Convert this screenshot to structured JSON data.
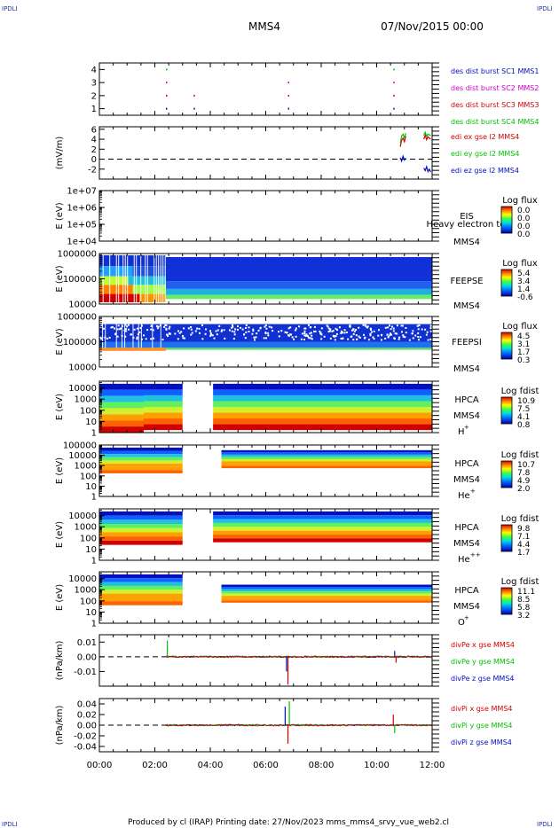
{
  "header": {
    "title": "MMS4",
    "datetime": "07/Nov/2015 00:00",
    "corner_label": "IPDLI",
    "footer": "Produced by cl (IRAP)   Printing date: 27/Nov/2023   mms_mms4_srvy_vue_web2.cl"
  },
  "x_ticks": [
    "00:00",
    "02:00",
    "04:00",
    "06:00",
    "08:00",
    "10:00",
    "12:00"
  ],
  "colors": {
    "red": "#d40000",
    "green": "#00c000",
    "blue": "#0010c0",
    "magenta": "#d000d0"
  },
  "chart_data": [
    {
      "type": "scatter",
      "panel": "burst",
      "ylabel": "",
      "yticks": [
        "1",
        "2",
        "3",
        "4"
      ],
      "ylim": [
        0.5,
        4.5
      ],
      "legend": [
        {
          "label": "des dist burst SC1 MMS1",
          "color": "#0010c0"
        },
        {
          "label": "des dist burst SC2 MMS2",
          "color": "#d000d0"
        },
        {
          "label": "des dist burst SC3 MMS3",
          "color": "#d40000"
        },
        {
          "label": "des dist burst SC4 MMS4",
          "color": "#00c000"
        }
      ],
      "x_hours": [
        2.4,
        3.4,
        6.8,
        10.6
      ],
      "series": [
        {
          "level": 4,
          "color": "#00c000",
          "x_hours": [
            2.4,
            10.6
          ]
        },
        {
          "level": 3,
          "color": "#d000d0",
          "x_hours": [
            2.4,
            6.8,
            10.6
          ]
        },
        {
          "level": 2,
          "color": "#d40000",
          "x_hours": [
            2.4,
            3.4,
            6.8,
            10.6
          ]
        },
        {
          "level": 1,
          "color": "#0010c0",
          "x_hours": [
            2.4,
            3.4,
            6.8,
            10.6
          ]
        }
      ]
    },
    {
      "type": "line",
      "panel": "edi",
      "ylabel": "(mV/m)",
      "yticks": [
        "-2",
        "0",
        "2",
        "4",
        "6"
      ],
      "ylim": [
        -4,
        6.5
      ],
      "legend": [
        {
          "label": "edi ex gse l2 MMS4",
          "color": "#d40000"
        },
        {
          "label": "edi ey gse l2 MMS4",
          "color": "#00c000"
        },
        {
          "label": "edi ez gse l2 MMS4",
          "color": "#0010c0"
        }
      ],
      "series": [
        {
          "name": "edi ex gse l2 MMS4",
          "color": "#d40000",
          "x": [
            10.85,
            10.9,
            10.95,
            11.0,
            11.05,
            11.7,
            11.75,
            11.8,
            11.85,
            11.9,
            11.95
          ],
          "y": [
            2.5,
            3.8,
            4.2,
            3.5,
            4.6,
            4.0,
            4.8,
            3.9,
            4.5,
            4.2,
            4.0
          ]
        },
        {
          "name": "edi ey gse l2 MMS4",
          "color": "#00c000",
          "x": [
            10.85,
            10.9,
            10.95,
            11.0,
            11.05,
            11.7,
            11.75,
            11.8,
            11.85,
            11.9,
            11.95
          ],
          "y": [
            3.2,
            4.6,
            5.0,
            4.3,
            5.2,
            4.8,
            5.4,
            4.6,
            5.0,
            4.9,
            4.7
          ]
        },
        {
          "name": "edi ez gse l2 MMS4",
          "color": "#0010c0",
          "x": [
            10.85,
            10.9,
            10.95,
            11.0,
            11.05,
            11.7,
            11.75,
            11.8,
            11.85,
            11.9,
            11.95
          ],
          "y": [
            0.3,
            -0.4,
            0.6,
            -0.2,
            0.2,
            -1.8,
            -2.3,
            -1.5,
            -2.5,
            -2.0,
            -2.6
          ]
        }
      ]
    },
    {
      "type": "heatmap",
      "panel": "eis",
      "ylabel": "E (eV)",
      "yticks": [
        "1e+04",
        "1e+05",
        "1e+06",
        "1e+07"
      ],
      "log_y": true,
      "ylim": [
        10000,
        10000000
      ],
      "species": [
        "EIS",
        "Heavy electron to",
        "MMS4"
      ],
      "colorbar": {
        "title": "Log flux",
        "ticks": [
          "0.0",
          "0.0",
          "0.0",
          "0.0"
        ]
      }
    },
    {
      "type": "heatmap",
      "panel": "feepse",
      "ylabel": "E (eV)",
      "yticks": [
        "10000",
        "100000",
        "1000000"
      ],
      "log_y": true,
      "ylim": [
        10000,
        1000000
      ],
      "species": [
        "FEEPSE",
        "MMS4"
      ],
      "colorbar": {
        "title": "Log flux",
        "ticks": [
          "5.4",
          "3.4",
          "1.4",
          "-0.6"
        ]
      }
    },
    {
      "type": "heatmap",
      "panel": "feepsi",
      "ylabel": "E (eV)",
      "yticks": [
        "10000",
        "100000",
        "1000000"
      ],
      "log_y": true,
      "ylim": [
        10000,
        1000000
      ],
      "species": [
        "FEEPSI",
        "MMS4"
      ],
      "colorbar": {
        "title": "Log flux",
        "ticks": [
          "4.5",
          "3.1",
          "1.7",
          "0.3"
        ]
      }
    },
    {
      "type": "heatmap",
      "panel": "hpca_h",
      "ylabel": "E (eV)",
      "yticks": [
        "1",
        "10",
        "100",
        "1000",
        "10000"
      ],
      "log_y": true,
      "ylim": [
        1,
        40000
      ],
      "species": [
        "HPCA",
        "MMS4"
      ],
      "ion": "H",
      "charge": "+",
      "colorbar": {
        "title": "Log fdist",
        "ticks": [
          "10.9",
          "7.5",
          "4.1",
          "0.8"
        ]
      }
    },
    {
      "type": "heatmap",
      "panel": "hpca_he",
      "ylabel": "E (eV)",
      "yticks": [
        "1",
        "10",
        "100",
        "1000",
        "10000",
        "100000"
      ],
      "log_y": true,
      "ylim": [
        1,
        100000
      ],
      "species": [
        "HPCA",
        "MMS4"
      ],
      "ion": "He",
      "charge": "+",
      "colorbar": {
        "title": "Log fdist",
        "ticks": [
          "10.7",
          "7.8",
          "4.9",
          "2.0"
        ]
      }
    },
    {
      "type": "heatmap",
      "panel": "hpca_hepp",
      "ylabel": "E (eV)",
      "yticks": [
        "1",
        "10",
        "100",
        "1000",
        "10000"
      ],
      "log_y": true,
      "ylim": [
        1,
        40000
      ],
      "species": [
        "HPCA",
        "MMS4"
      ],
      "ion": "He",
      "charge": "++",
      "colorbar": {
        "title": "Log fdist",
        "ticks": [
          "9.8",
          "7.1",
          "4.4",
          "1.7"
        ]
      }
    },
    {
      "type": "heatmap",
      "panel": "hpca_o",
      "ylabel": "E (eV)",
      "yticks": [
        "1",
        "10",
        "100",
        "1000",
        "10000"
      ],
      "log_y": true,
      "ylim": [
        1,
        40000
      ],
      "species": [
        "HPCA",
        "MMS4"
      ],
      "ion": "O",
      "charge": "+",
      "colorbar": {
        "title": "Log fdist",
        "ticks": [
          "11.1",
          "8.5",
          "5.8",
          "3.2"
        ]
      }
    },
    {
      "type": "line",
      "panel": "divpe",
      "ylabel": "(nPa/km)",
      "yticks": [
        "-0.01",
        "0.00",
        "0.01"
      ],
      "ylim": [
        -0.02,
        0.015
      ],
      "legend": [
        {
          "label": "divPe x gse MMS4",
          "color": "#d40000"
        },
        {
          "label": "divPe y gse MMS4",
          "color": "#00c000"
        },
        {
          "label": "divPe z gse MMS4",
          "color": "#0010c0"
        }
      ],
      "data_start_hour": 2.4,
      "spikes": [
        {
          "x": 6.8,
          "y": -0.019,
          "color": "#d40000"
        },
        {
          "x": 6.75,
          "y": -0.01,
          "color": "#0010c0"
        },
        {
          "x": 10.65,
          "y": 0.004,
          "color": "#0010c0"
        },
        {
          "x": 10.7,
          "y": -0.004,
          "color": "#d40000"
        },
        {
          "x": 2.45,
          "y": 0.011,
          "color": "#00c000"
        }
      ]
    },
    {
      "type": "line",
      "panel": "divpi",
      "ylabel": "(nPa/km)",
      "yticks": [
        "-0.04",
        "-0.02",
        "0.00",
        "0.02",
        "0.04"
      ],
      "ylim": [
        -0.05,
        0.05
      ],
      "legend": [
        {
          "label": "divPi x gse MMS4",
          "color": "#d40000"
        },
        {
          "label": "divPi y gse MMS4",
          "color": "#00c000"
        },
        {
          "label": "divPi z gse MMS4",
          "color": "#0010c0"
        }
      ],
      "data_start_hour": 2.4,
      "spikes": [
        {
          "x": 6.85,
          "y": 0.045,
          "color": "#00c000"
        },
        {
          "x": 6.8,
          "y": -0.035,
          "color": "#d40000"
        },
        {
          "x": 6.7,
          "y": 0.035,
          "color": "#0010c0"
        },
        {
          "x": 10.6,
          "y": 0.02,
          "color": "#d40000"
        },
        {
          "x": 10.65,
          "y": -0.015,
          "color": "#00c000"
        }
      ]
    }
  ]
}
